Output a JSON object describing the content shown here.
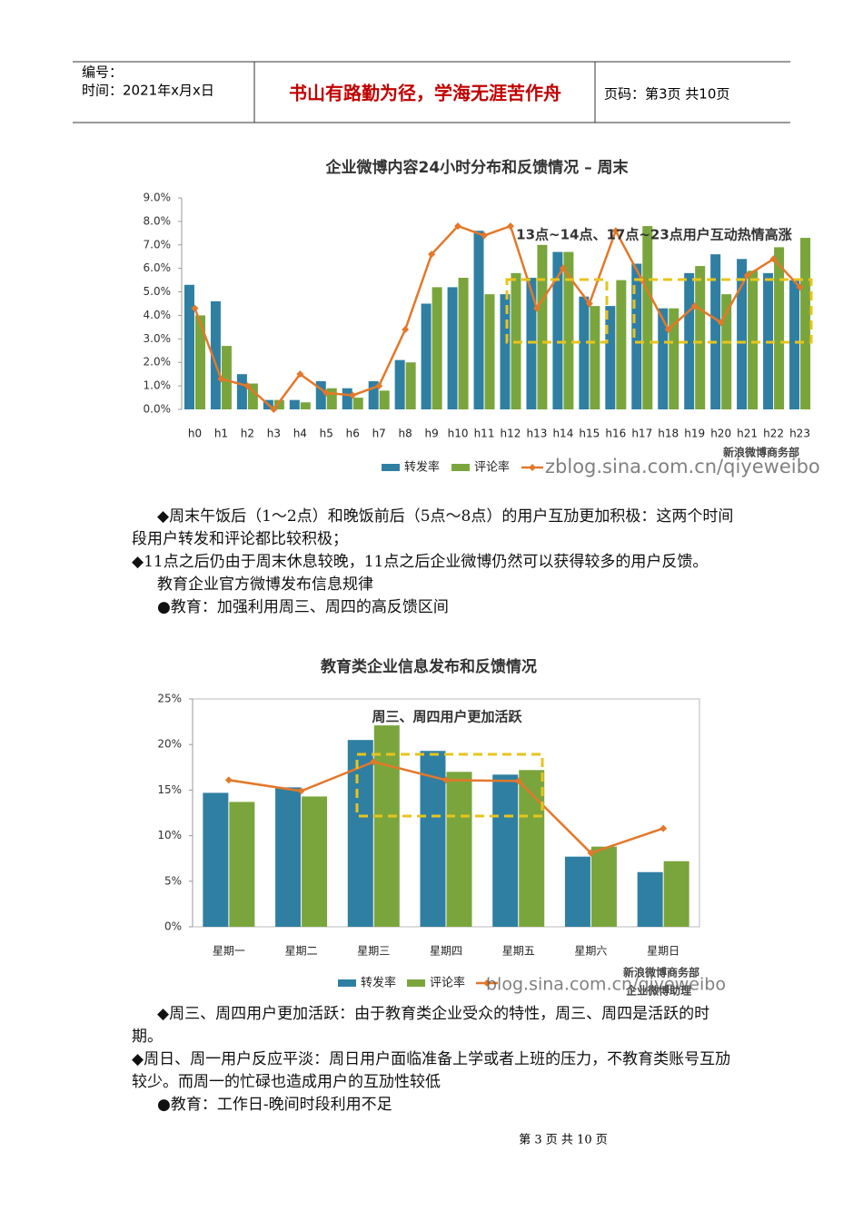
{
  "header": {
    "number": "编号：",
    "time": "时间：2021年x月x日",
    "motto": "书山有路勤为径，学海无涯苦作舟",
    "page": "页码：第3页 共10页"
  },
  "chart_data": [
    {
      "type": "bar",
      "title": "企业微博内容24小时分布和反馈情况 – 周末",
      "categories": [
        "h0",
        "h1",
        "h2",
        "h3",
        "h4",
        "h5",
        "h6",
        "h7",
        "h8",
        "h9",
        "h10",
        "h11",
        "h12",
        "h13",
        "h14",
        "h15",
        "h16",
        "h17",
        "h18",
        "h19",
        "h20",
        "h21",
        "h22",
        "h23"
      ],
      "series": [
        {
          "name": "转发率",
          "color": "#2f7fa3",
          "values": [
            5.3,
            4.6,
            1.5,
            0.4,
            0.4,
            1.2,
            0.9,
            1.2,
            2.1,
            4.5,
            5.2,
            7.6,
            4.9,
            5.6,
            6.7,
            4.8,
            4.4,
            6.2,
            4.3,
            5.8,
            6.6,
            6.4,
            5.8,
            5.5
          ]
        },
        {
          "name": "评论率",
          "color": "#7aa53c",
          "values": [
            4.0,
            2.7,
            1.1,
            0.4,
            0.3,
            0.9,
            0.5,
            0.8,
            2.0,
            5.2,
            5.6,
            4.9,
            5.8,
            7.0,
            6.7,
            4.4,
            5.5,
            7.8,
            4.3,
            6.1,
            4.9,
            5.9,
            6.9,
            7.3
          ]
        },
        {
          "type": "line",
          "color": "#e3782a",
          "values": [
            4.3,
            1.3,
            1.0,
            0.0,
            1.5,
            0.7,
            0.6,
            1.0,
            3.4,
            6.6,
            7.8,
            7.4,
            7.8,
            4.3,
            6.0,
            4.5,
            7.6,
            5.5,
            3.4,
            4.4,
            3.7,
            5.7,
            6.4,
            5.2
          ]
        }
      ],
      "ylim": [
        0,
        9
      ],
      "yticks": [
        {
          "value": 0,
          "label": "0.0%"
        },
        {
          "value": 1,
          "label": "1.0%"
        },
        {
          "value": 2,
          "label": "2.0%"
        },
        {
          "value": 3,
          "label": "3.0%"
        },
        {
          "value": 4,
          "label": "4.0%"
        },
        {
          "value": 5,
          "label": "5.0%"
        },
        {
          "value": 6,
          "label": "6.0%"
        },
        {
          "value": 7,
          "label": "7.0%"
        },
        {
          "value": 8,
          "label": "8.0%"
        },
        {
          "value": 9,
          "label": "9.0%"
        }
      ],
      "grid": false,
      "annotation": "13点~14点、17点~23点用户互动热情高涨",
      "source": [
        "新浪微博商务部"
      ],
      "watermark": "zblog.sina.com.cn/qiyeweibo"
    },
    {
      "type": "bar",
      "title": "教育类企业信息发布和反馈情况",
      "categories": [
        "星期一",
        "星期二",
        "星期三",
        "星期四",
        "星期五",
        "星期六",
        "星期日"
      ],
      "series": [
        {
          "name": "转发率",
          "color": "#2f7fa3",
          "values": [
            14.7,
            15.3,
            20.5,
            19.3,
            16.7,
            7.7,
            6.0
          ]
        },
        {
          "name": "评论率",
          "color": "#7aa53c",
          "values": [
            13.7,
            14.3,
            22.1,
            17.0,
            17.2,
            8.8,
            7.2
          ]
        },
        {
          "type": "line",
          "color": "#e3782a",
          "values": [
            16.1,
            14.9,
            18.1,
            16.1,
            16.0,
            8.1,
            10.8
          ]
        }
      ],
      "ylim": [
        0,
        25
      ],
      "yticks": [
        {
          "value": 0,
          "label": "0%"
        },
        {
          "value": 5,
          "label": "5%"
        },
        {
          "value": 10,
          "label": "10%"
        },
        {
          "value": 15,
          "label": "15%"
        },
        {
          "value": 20,
          "label": "20%"
        },
        {
          "value": 25,
          "label": "25%"
        }
      ],
      "grid": false,
      "annotation": "周三、周四用户更加活跃",
      "source": [
        "新浪微博商务部",
        "企业微博助理"
      ],
      "watermark": "blog.sina.com.cn/qiyeweibo"
    }
  ],
  "section1": [
    "◆周末午饭后（1～2点）和晚饭前后（5点～8点）的用户互劢更加积极：这两个时间段用户转发和评论都比较积极；",
    "◆11点之后仍由于周末休息较晚，11点之后企业微博仍然可以获得较多的用户反馈。",
    "教育企业官方微博发布信息规律",
    "●教育：加强利用周三、周四的高反馈区间"
  ],
  "section2": [
    "◆周三、周四用户更加活跃：由于教育类企业受众的特性，周三、周四是活跃的时期。",
    "◆周日、周一用户反应平淡：周日用户面临准备上学或者上班的压力，不教育类账号互劢较少。而周一的忙碌也造成用户的互劢性较低",
    "●教育：工作日-晚间时段利用不足"
  ],
  "footer": "第 3 页 共 10 页"
}
